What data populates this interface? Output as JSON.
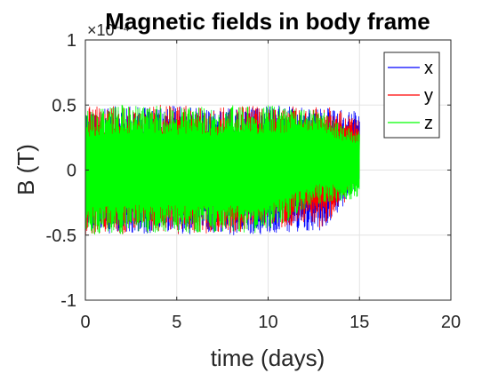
{
  "chart_data": {
    "type": "line",
    "title": "Magnetic fields in body frame",
    "xlabel": "time (days)",
    "ylabel": "B (T)",
    "y_exponent": "×10⁻⁴",
    "xlim": [
      0,
      20
    ],
    "ylim": [
      -1,
      1
    ],
    "xticks": [
      0,
      5,
      10,
      15,
      20
    ],
    "yticks": [
      -1,
      -0.5,
      0,
      0.5,
      1
    ],
    "xtick_labels": [
      "0",
      "5",
      "10",
      "15",
      "20"
    ],
    "ytick_labels": [
      "-1",
      "-0.5",
      "0",
      "0.5",
      "1"
    ],
    "grid": true,
    "legend_position": "top-right",
    "series": [
      {
        "name": "x",
        "color": "#0000ff",
        "x": [
          0,
          1,
          2,
          3,
          4,
          5,
          6,
          7,
          8,
          9,
          10,
          11,
          12,
          13,
          14,
          15
        ],
        "upper": [
          0.48,
          0.47,
          0.5,
          0.48,
          0.47,
          0.5,
          0.48,
          0.46,
          0.5,
          0.48,
          0.5,
          0.5,
          0.48,
          0.48,
          0.46,
          0.45
        ],
        "lower": [
          -0.5,
          -0.49,
          -0.48,
          -0.5,
          -0.47,
          -0.5,
          -0.49,
          -0.48,
          -0.5,
          -0.49,
          -0.5,
          -0.48,
          -0.48,
          -0.47,
          -0.3,
          -0.1
        ]
      },
      {
        "name": "y",
        "color": "#ff0000",
        "x": [
          0,
          1,
          2,
          3,
          4,
          5,
          6,
          7,
          8,
          9,
          10,
          11,
          12,
          13,
          14,
          15
        ],
        "upper": [
          0.5,
          0.48,
          0.5,
          0.47,
          0.5,
          0.49,
          0.5,
          0.48,
          0.49,
          0.5,
          0.48,
          0.5,
          0.47,
          0.5,
          0.45,
          0.38
        ],
        "lower": [
          -0.5,
          -0.48,
          -0.5,
          -0.49,
          -0.47,
          -0.5,
          -0.48,
          -0.49,
          -0.5,
          -0.48,
          -0.42,
          -0.45,
          -0.4,
          -0.45,
          -0.28,
          -0.12
        ]
      },
      {
        "name": "z",
        "color": "#00ff00",
        "x": [
          0,
          1,
          2,
          3,
          4,
          5,
          6,
          7,
          8,
          9,
          10,
          11,
          12,
          13,
          14,
          15
        ],
        "upper": [
          0.47,
          0.48,
          0.5,
          0.49,
          0.5,
          0.48,
          0.5,
          0.47,
          0.5,
          0.49,
          0.5,
          0.48,
          0.47,
          0.45,
          0.35,
          0.3
        ],
        "lower": [
          -0.5,
          -0.49,
          -0.5,
          -0.48,
          -0.5,
          -0.47,
          -0.5,
          -0.49,
          -0.48,
          -0.5,
          -0.45,
          -0.4,
          -0.3,
          -0.25,
          -0.25,
          -0.2
        ]
      }
    ]
  }
}
